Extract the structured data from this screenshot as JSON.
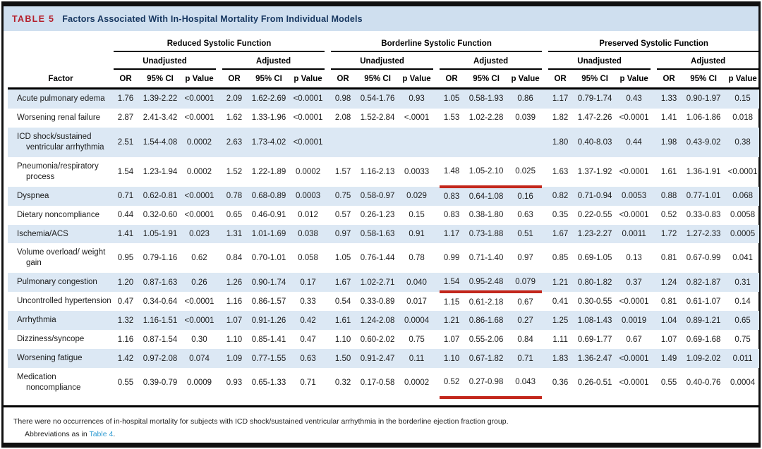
{
  "title": {
    "tag": "TABLE 5",
    "text": "Factors Associated With In-Hospital Mortality From Individual Models"
  },
  "table": {
    "factor_header": "Factor",
    "groups": [
      {
        "label": "Reduced Systolic Function",
        "subgroups": [
          "Unadjusted",
          "Adjusted"
        ]
      },
      {
        "label": "Borderline Systolic Function",
        "subgroups": [
          "Unadjusted",
          "Adjusted"
        ]
      },
      {
        "label": "Preserved Systolic Function",
        "subgroups": [
          "Unadjusted",
          "Adjusted"
        ]
      }
    ],
    "metric_headers": [
      "OR",
      "95% CI",
      "p Value"
    ],
    "rows": [
      {
        "factor": "Acute pulmonary edema",
        "shaded": true,
        "underline_borderline_adjusted": false,
        "values": [
          "1.76",
          "1.39-2.22",
          "<0.0001",
          "2.09",
          "1.62-2.69",
          "<0.0001",
          "0.98",
          "0.54-1.76",
          "0.93",
          "1.05",
          "0.58-1.93",
          "0.86",
          "1.17",
          "0.79-1.74",
          "0.43",
          "1.33",
          "0.90-1.97",
          "0.15"
        ]
      },
      {
        "factor": "Worsening renal failure",
        "shaded": false,
        "underline_borderline_adjusted": false,
        "values": [
          "2.87",
          "2.41-3.42",
          "<0.0001",
          "1.62",
          "1.33-1.96",
          "<0.0001",
          "2.08",
          "1.52-2.84",
          "<.0001",
          "1.53",
          "1.02-2.28",
          "0.039",
          "1.82",
          "1.47-2.26",
          "<0.0001",
          "1.41",
          "1.06-1.86",
          "0.018"
        ]
      },
      {
        "factor": "ICD shock/sustained ventricular arrhythmia",
        "shaded": true,
        "underline_borderline_adjusted": false,
        "values": [
          "2.51",
          "1.54-4.08",
          "0.0002",
          "2.63",
          "1.73-4.02",
          "<0.0001",
          "",
          "",
          "",
          "",
          "",
          "",
          "1.80",
          "0.40-8.03",
          "0.44",
          "1.98",
          "0.43-9.02",
          "0.38"
        ]
      },
      {
        "factor": "Pneumonia/respiratory process",
        "shaded": false,
        "underline_borderline_adjusted": true,
        "values": [
          "1.54",
          "1.23-1.94",
          "0.0002",
          "1.52",
          "1.22-1.89",
          "0.0002",
          "1.57",
          "1.16-2.13",
          "0.0033",
          "1.48",
          "1.05-2.10",
          "0.025",
          "1.63",
          "1.37-1.92",
          "<0.0001",
          "1.61",
          "1.36-1.91",
          "<0.0001"
        ]
      },
      {
        "factor": "Dyspnea",
        "shaded": true,
        "underline_borderline_adjusted": false,
        "values": [
          "0.71",
          "0.62-0.81",
          "<0.0001",
          "0.78",
          "0.68-0.89",
          "0.0003",
          "0.75",
          "0.58-0.97",
          "0.029",
          "0.83",
          "0.64-1.08",
          "0.16",
          "0.82",
          "0.71-0.94",
          "0.0053",
          "0.88",
          "0.77-1.01",
          "0.068"
        ]
      },
      {
        "factor": "Dietary noncompliance",
        "shaded": false,
        "underline_borderline_adjusted": false,
        "values": [
          "0.44",
          "0.32-0.60",
          "<0.0001",
          "0.65",
          "0.46-0.91",
          "0.012",
          "0.57",
          "0.26-1.23",
          "0.15",
          "0.83",
          "0.38-1.80",
          "0.63",
          "0.35",
          "0.22-0.55",
          "<0.0001",
          "0.52",
          "0.33-0.83",
          "0.0058"
        ]
      },
      {
        "factor": "Ischemia/ACS",
        "shaded": true,
        "underline_borderline_adjusted": false,
        "values": [
          "1.41",
          "1.05-1.91",
          "0.023",
          "1.31",
          "1.01-1.69",
          "0.038",
          "0.97",
          "0.58-1.63",
          "0.91",
          "1.17",
          "0.73-1.88",
          "0.51",
          "1.67",
          "1.23-2.27",
          "0.0011",
          "1.72",
          "1.27-2.33",
          "0.0005"
        ]
      },
      {
        "factor": "Volume overload/ weight gain",
        "shaded": false,
        "underline_borderline_adjusted": false,
        "values": [
          "0.95",
          "0.79-1.16",
          "0.62",
          "0.84",
          "0.70-1.01",
          "0.058",
          "1.05",
          "0.76-1.44",
          "0.78",
          "0.99",
          "0.71-1.40",
          "0.97",
          "0.85",
          "0.69-1.05",
          "0.13",
          "0.81",
          "0.67-0.99",
          "0.041"
        ]
      },
      {
        "factor": "Pulmonary congestion",
        "shaded": true,
        "underline_borderline_adjusted": true,
        "values": [
          "1.20",
          "0.87-1.63",
          "0.26",
          "1.26",
          "0.90-1.74",
          "0.17",
          "1.67",
          "1.02-2.71",
          "0.040",
          "1.54",
          "0.95-2.48",
          "0.079",
          "1.21",
          "0.80-1.82",
          "0.37",
          "1.24",
          "0.82-1.87",
          "0.31"
        ]
      },
      {
        "factor": "Uncontrolled hypertension",
        "shaded": false,
        "underline_borderline_adjusted": false,
        "values": [
          "0.47",
          "0.34-0.64",
          "<0.0001",
          "1.16",
          "0.86-1.57",
          "0.33",
          "0.54",
          "0.33-0.89",
          "0.017",
          "1.15",
          "0.61-2.18",
          "0.67",
          "0.41",
          "0.30-0.55",
          "<0.0001",
          "0.81",
          "0.61-1.07",
          "0.14"
        ]
      },
      {
        "factor": "Arrhythmia",
        "shaded": true,
        "underline_borderline_adjusted": false,
        "values": [
          "1.32",
          "1.16-1.51",
          "<0.0001",
          "1.07",
          "0.91-1.26",
          "0.42",
          "1.61",
          "1.24-2.08",
          "0.0004",
          "1.21",
          "0.86-1.68",
          "0.27",
          "1.25",
          "1.08-1.43",
          "0.0019",
          "1.04",
          "0.89-1.21",
          "0.65"
        ]
      },
      {
        "factor": "Dizziness/syncope",
        "shaded": false,
        "underline_borderline_adjusted": false,
        "values": [
          "1.16",
          "0.87-1.54",
          "0.30",
          "1.10",
          "0.85-1.41",
          "0.47",
          "1.10",
          "0.60-2.02",
          "0.75",
          "1.07",
          "0.55-2.06",
          "0.84",
          "1.11",
          "0.69-1.77",
          "0.67",
          "1.07",
          "0.69-1.68",
          "0.75"
        ]
      },
      {
        "factor": "Worsening fatigue",
        "shaded": true,
        "underline_borderline_adjusted": false,
        "values": [
          "1.42",
          "0.97-2.08",
          "0.074",
          "1.09",
          "0.77-1.55",
          "0.63",
          "1.50",
          "0.91-2.47",
          "0.11",
          "1.10",
          "0.67-1.82",
          "0.71",
          "1.83",
          "1.36-2.47",
          "<0.0001",
          "1.49",
          "1.09-2.02",
          "0.011"
        ]
      },
      {
        "factor": "Medication noncompliance",
        "shaded": false,
        "underline_borderline_adjusted": true,
        "values": [
          "0.55",
          "0.39-0.79",
          "0.0009",
          "0.93",
          "0.65-1.33",
          "0.71",
          "0.32",
          "0.17-0.58",
          "0.0002",
          "0.52",
          "0.27-0.98",
          "0.043",
          "0.36",
          "0.26-0.51",
          "<0.0001",
          "0.55",
          "0.40-0.76",
          "0.0004"
        ]
      }
    ]
  },
  "footnotes": {
    "line1": "There were no occurrences of in-hospital mortality for subjects with ICD shock/sustained ventricular arrhythmia in the borderline ejection fraction group.",
    "line2_prefix": "Abbreviations as in ",
    "line2_link": "Table 4",
    "line2_suffix": "."
  },
  "colors": {
    "title_tag_red": "#b41f2b",
    "title_navy": "#16365f",
    "title_bar_blue": "#cfdfef",
    "row_shade_blue": "#dce8f4",
    "annotation_underline_red": "#c3271c",
    "link_blue": "#2d9ad1"
  }
}
